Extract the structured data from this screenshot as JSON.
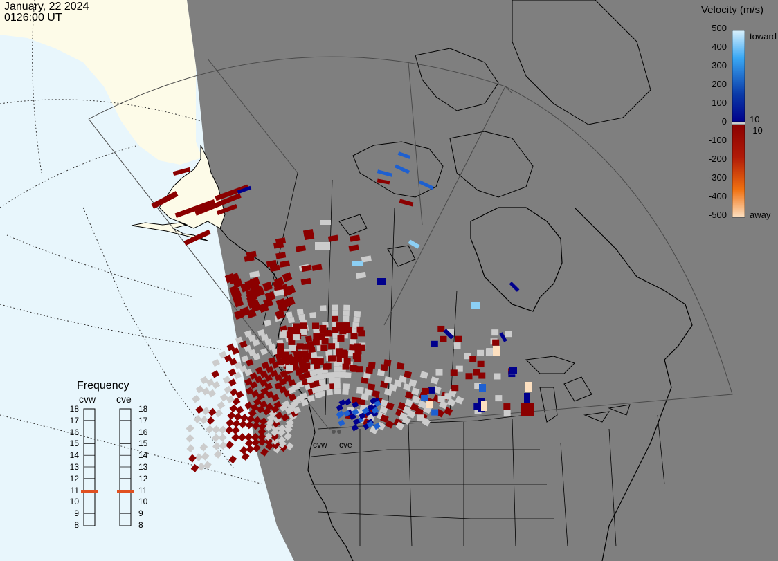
{
  "header": {
    "date": "January, 22 2024",
    "time": "0126:00 UT"
  },
  "legend": {
    "title": "Velocity (m/s)",
    "ticks": [
      "500",
      "400",
      "300",
      "200",
      "100",
      "0",
      "-100",
      "-200",
      "-300",
      "-400",
      "-500"
    ],
    "inner_pos": "10",
    "inner_neg": "-10",
    "toward_label": "toward",
    "away_label": "away",
    "colors": {
      "toward_light": "#bfe8fb",
      "toward_mid": "#1e90e8",
      "toward_dark": "#0a3aa8",
      "near_zero_pos": "#00008c",
      "near_zero_neg": "#8b0000",
      "away_mid": "#e06010",
      "away_light": "#fde0c0",
      "ground_scatter": "#cccccc"
    }
  },
  "frequency_panel": {
    "title": "Frequency",
    "radars": [
      {
        "id": "cvw",
        "label": "cvw",
        "value": 10.9
      },
      {
        "id": "cve",
        "label": "cve",
        "value": 10.9
      }
    ],
    "scale": [
      "18",
      "17",
      "16",
      "15",
      "14",
      "13",
      "12",
      "11",
      "10",
      "9",
      "8"
    ]
  },
  "radar_sites": [
    "cvw",
    "cve"
  ],
  "map_colors": {
    "ocean": "#e8f6fc",
    "night": "#7f7f7f",
    "day_land": "#fdfbe8",
    "coast": "#000000",
    "fov": "#4a4a4a"
  }
}
